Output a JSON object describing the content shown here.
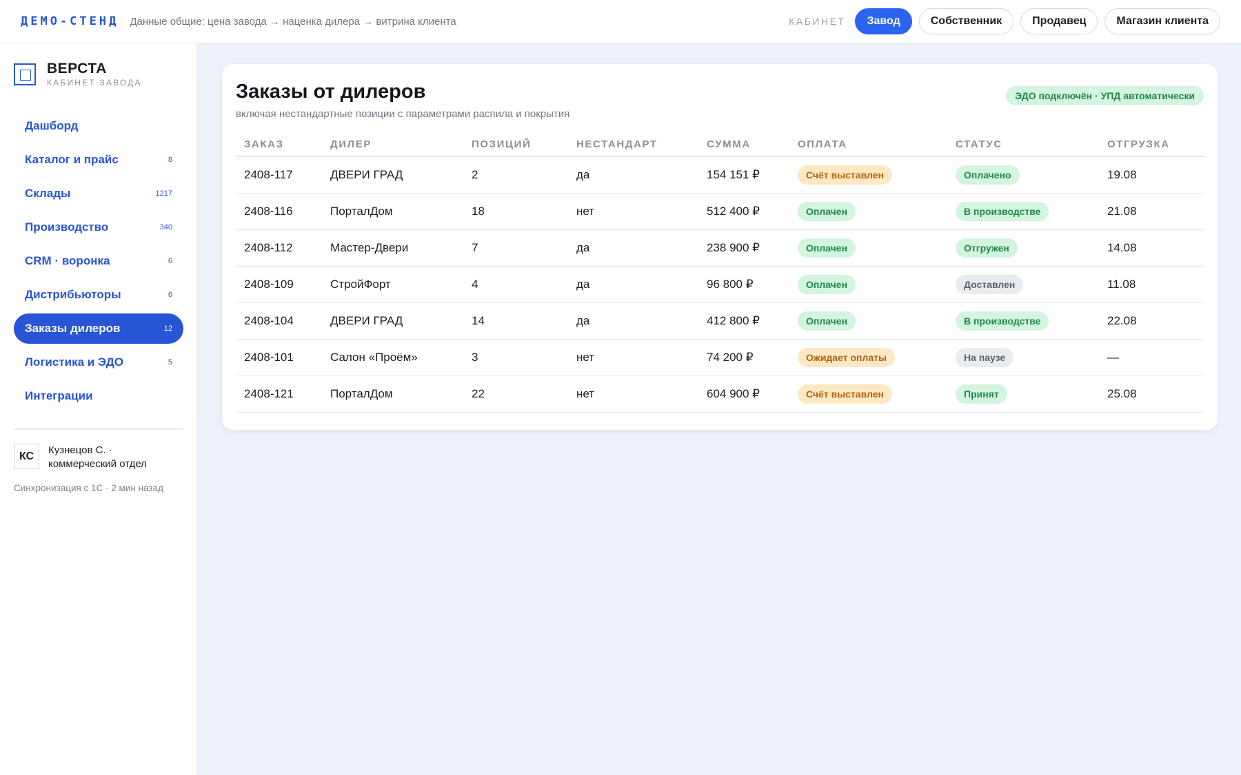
{
  "topbar": {
    "brand": "ДЕМО-СТЕНД",
    "flow": "Данные общие: цена завода → наценка дилера → витрина клиента",
    "cabinet_label": "КАБИНЕТ",
    "cabinets": [
      {
        "label": "Завод",
        "active": true
      },
      {
        "label": "Собственник",
        "active": false
      },
      {
        "label": "Продавец",
        "active": false
      },
      {
        "label": "Магазин клиента",
        "active": false
      }
    ]
  },
  "sidebar": {
    "logo_title": "ВЕРСТА",
    "logo_subtitle": "КАБИНЕТ ЗАВОДА",
    "items": [
      {
        "label": "Дашборд",
        "count": ""
      },
      {
        "label": "Каталог и прайс",
        "count": "8"
      },
      {
        "label": "Склады",
        "count": "1217"
      },
      {
        "label": "Производство",
        "count": "340"
      },
      {
        "label": "CRM · воронка",
        "count": "6"
      },
      {
        "label": "Дистрибьюторы",
        "count": "6"
      },
      {
        "label": "Заказы дилеров",
        "count": "12"
      },
      {
        "label": "Логистика и ЭДО",
        "count": "5"
      },
      {
        "label": "Интеграции",
        "count": ""
      }
    ],
    "active_index": 6,
    "user_initials": "КС",
    "user_name": "Кузнецов С. · коммерческий отдел",
    "sync": "Синхронизация с 1С · 2 мин назад"
  },
  "main": {
    "title": "Заказы от дилеров",
    "subtitle": "включая нестандартные позиции с параметрами распила и покрытия",
    "edo_badge": "ЭДО подключён · УПД автоматически",
    "colors": {
      "green": "#1e8a46",
      "orange": "#b4620c",
      "gray": "#5c626d",
      "accent": "#2855d6"
    },
    "columns": [
      "ЗАКАЗ",
      "ДИЛЕР",
      "ПОЗИЦИЙ",
      "НЕСТАНДАРТ",
      "СУММА",
      "ОПЛАТА",
      "СТАТУС",
      "ОТГРУЗКА"
    ],
    "rows": [
      {
        "order": "2408-117",
        "dealer": "ДВЕРИ ГРАД",
        "items": "2",
        "nonstandard": "да",
        "sum": "154 151 ₽",
        "payment": "Счёт выставлен",
        "payment_tone": "orange",
        "status": "Оплачено",
        "status_tone": "green",
        "shipment": "19.08"
      },
      {
        "order": "2408-116",
        "dealer": "ПорталДом",
        "items": "18",
        "nonstandard": "нет",
        "sum": "512 400 ₽",
        "payment": "Оплачен",
        "payment_tone": "green",
        "status": "В производстве",
        "status_tone": "green",
        "shipment": "21.08"
      },
      {
        "order": "2408-112",
        "dealer": "Мастер-Двери",
        "items": "7",
        "nonstandard": "да",
        "sum": "238 900 ₽",
        "payment": "Оплачен",
        "payment_tone": "green",
        "status": "Отгружен",
        "status_tone": "green",
        "shipment": "14.08"
      },
      {
        "order": "2408-109",
        "dealer": "СтройФорт",
        "items": "4",
        "nonstandard": "да",
        "sum": "96 800 ₽",
        "payment": "Оплачен",
        "payment_tone": "green",
        "status": "Доставлен",
        "status_tone": "gray",
        "shipment": "11.08"
      },
      {
        "order": "2408-104",
        "dealer": "ДВЕРИ ГРАД",
        "items": "14",
        "nonstandard": "да",
        "sum": "412 800 ₽",
        "payment": "Оплачен",
        "payment_tone": "green",
        "status": "В производстве",
        "status_tone": "green",
        "shipment": "22.08"
      },
      {
        "order": "2408-101",
        "dealer": "Салон «Проём»",
        "items": "3",
        "nonstandard": "нет",
        "sum": "74 200 ₽",
        "payment": "Ожидает оплаты",
        "payment_tone": "orange",
        "status": "На паузе",
        "status_tone": "gray",
        "shipment": "—"
      },
      {
        "order": "2408-121",
        "dealer": "ПорталДом",
        "items": "22",
        "nonstandard": "нет",
        "sum": "604 900 ₽",
        "payment": "Счёт выставлен",
        "payment_tone": "orange",
        "status": "Принят",
        "status_tone": "green",
        "shipment": "25.08"
      }
    ]
  }
}
